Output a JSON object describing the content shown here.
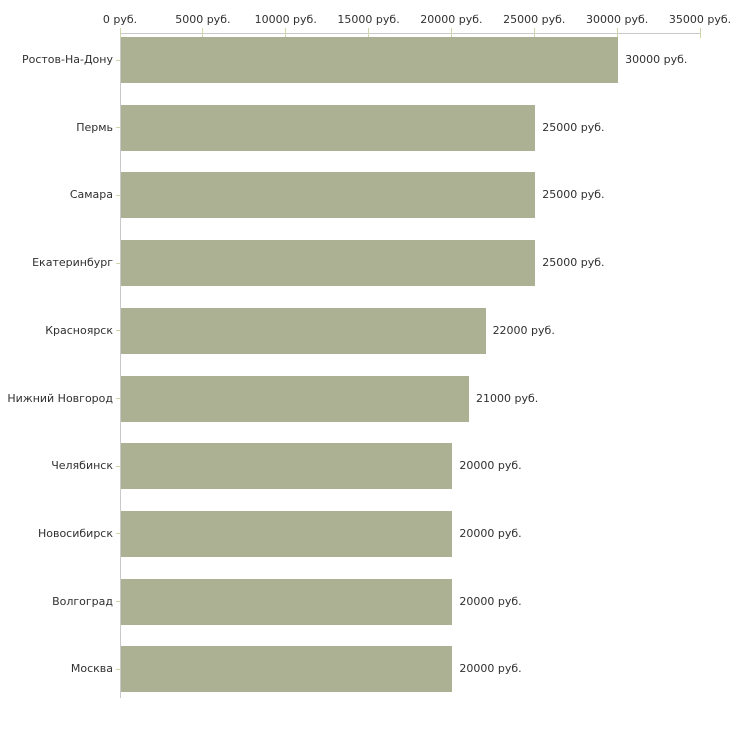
{
  "chart_data": {
    "type": "bar",
    "orientation": "horizontal",
    "title": "",
    "xlabel": "",
    "ylabel": "",
    "unit": "руб.",
    "xlim": [
      0,
      35000
    ],
    "grid": false,
    "legend": false,
    "x_axis_position": "top",
    "x_ticks": [
      0,
      5000,
      10000,
      15000,
      20000,
      25000,
      30000,
      35000
    ],
    "x_tick_labels": [
      "0 руб.",
      "5000 руб.",
      "10000 руб.",
      "15000 руб.",
      "20000 руб.",
      "25000 руб.",
      "30000 руб.",
      "35000 руб."
    ],
    "categories": [
      "Ростов-На-Дону",
      "Пермь",
      "Самара",
      "Екатеринбург",
      "Красноярск",
      "Нижний Новгород",
      "Челябинск",
      "Новосибирск",
      "Волгоград",
      "Москва"
    ],
    "values": [
      30000,
      25000,
      25000,
      25000,
      22000,
      21000,
      20000,
      20000,
      20000,
      20000
    ],
    "value_labels": [
      "30000 руб.",
      "25000 руб.",
      "25000 руб.",
      "25000 руб.",
      "22000 руб.",
      "21000 руб.",
      "20000 руб.",
      "20000 руб.",
      "20000 руб.",
      "20000 руб."
    ],
    "colors": {
      "bar": "#abb192",
      "axis_line": "#c9c9c9",
      "tick_mark": "#d2d4ab",
      "text": "#303030",
      "background": "#ffffff"
    }
  }
}
